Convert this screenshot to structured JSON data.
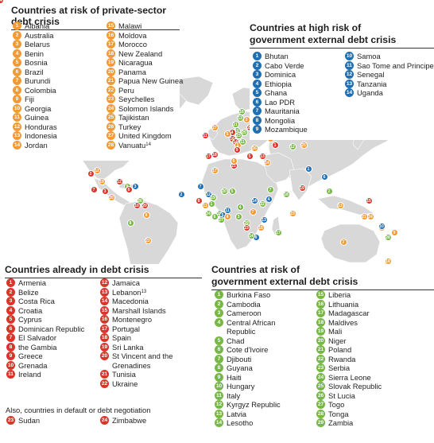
{
  "colors": {
    "private": "#f39a35",
    "external": "#1f6fb5",
    "crisis": "#d9362b",
    "external_risk": "#77b845",
    "land": "#d8d8d8",
    "ocean": "#ffffff"
  },
  "private_sector": {
    "title": "Countries at risk of private-sector debt crisis",
    "col1": [
      {
        "n": "1",
        "name": "Albania"
      },
      {
        "n": "2",
        "name": "Australia"
      },
      {
        "n": "3",
        "name": "Belarus"
      },
      {
        "n": "4",
        "name": "Benin"
      },
      {
        "n": "5",
        "name": "Bosnia"
      },
      {
        "n": "6",
        "name": "Brazil"
      },
      {
        "n": "7",
        "name": "Burundi"
      },
      {
        "n": "8",
        "name": "Colombia"
      },
      {
        "n": "9",
        "name": "Fiji"
      },
      {
        "n": "10",
        "name": "Georgia"
      },
      {
        "n": "11",
        "name": "Guinea"
      },
      {
        "n": "12",
        "name": "Honduras"
      },
      {
        "n": "13",
        "name": "Indonesia"
      },
      {
        "n": "14",
        "name": "Jordan"
      }
    ],
    "col2": [
      {
        "n": "15",
        "name": "Malawi"
      },
      {
        "n": "16",
        "name": "Moldova"
      },
      {
        "n": "17",
        "name": "Morocco"
      },
      {
        "n": "18",
        "name": "New Zealand"
      },
      {
        "n": "19",
        "name": "Nicaragua"
      },
      {
        "n": "20",
        "name": "Panama"
      },
      {
        "n": "21",
        "name": "Papua New Guinea"
      },
      {
        "n": "22",
        "name": "Peru"
      },
      {
        "n": "23",
        "name": "Seychelles"
      },
      {
        "n": "24",
        "name": "Solomon Islands"
      },
      {
        "n": "25",
        "name": "Tajikistan"
      },
      {
        "n": "26",
        "name": "Turkey"
      },
      {
        "n": "27",
        "name": "United Kingdom"
      },
      {
        "n": "28",
        "name": "Vanuatu",
        "sup": "14"
      }
    ]
  },
  "external_high": {
    "title_line1": "Countries at high risk of",
    "title_line2": "government external debt crisis",
    "col1": [
      {
        "n": "1",
        "name": "Bhutan"
      },
      {
        "n": "2",
        "name": "Cabo Verde"
      },
      {
        "n": "3",
        "name": "Dominica"
      },
      {
        "n": "4",
        "name": "Ethiopia"
      },
      {
        "n": "5",
        "name": "Ghana"
      },
      {
        "n": "6",
        "name": "Lao PDR"
      },
      {
        "n": "7",
        "name": "Mauritania"
      },
      {
        "n": "8",
        "name": "Mongolia"
      },
      {
        "n": "9",
        "name": "Mozambique"
      }
    ],
    "col2": [
      {
        "n": "10",
        "name": "Samoa"
      },
      {
        "n": "11",
        "name": "Sao Tome and Principe"
      },
      {
        "n": "12",
        "name": "Senegal"
      },
      {
        "n": "13",
        "name": "Tanzania"
      },
      {
        "n": "14",
        "name": "Uganda"
      }
    ]
  },
  "in_crisis": {
    "title": "Countries already in debt crisis",
    "col1": [
      {
        "n": "1",
        "name": "Armenia"
      },
      {
        "n": "2",
        "name": "Belize"
      },
      {
        "n": "3",
        "name": "Costa Rica"
      },
      {
        "n": "4",
        "name": "Croatia"
      },
      {
        "n": "5",
        "name": "Cyprus"
      },
      {
        "n": "6",
        "name": "Dominican Republic"
      },
      {
        "n": "7",
        "name": "El Salvador"
      },
      {
        "n": "8",
        "name": "the Gambia"
      },
      {
        "n": "9",
        "name": "Greece"
      },
      {
        "n": "10",
        "name": "Grenada"
      },
      {
        "n": "11",
        "name": "Ireland"
      }
    ],
    "col2": [
      {
        "n": "12",
        "name": "Jamaica"
      },
      {
        "n": "13",
        "name": "Lebanon",
        "sup": "13"
      },
      {
        "n": "14",
        "name": "Macedonia"
      },
      {
        "n": "15",
        "name": "Marshall Islands"
      },
      {
        "n": "16",
        "name": "Montenegro"
      },
      {
        "n": "17",
        "name": "Portugal"
      },
      {
        "n": "18",
        "name": "Spain"
      },
      {
        "n": "19",
        "name": "Sri Lanka"
      },
      {
        "n": "20",
        "name": "St Vincent and the",
        "name2": "Grenadines"
      },
      {
        "n": "21",
        "name": "Tunisia"
      },
      {
        "n": "22",
        "name": "Ukraine"
      }
    ],
    "note": "Also, countries in default or debt negotiation",
    "default": [
      {
        "n": "23",
        "name": "Sudan"
      },
      {
        "n": "24",
        "name": "Zimbabwe"
      }
    ]
  },
  "external_risk": {
    "title_line1": "Countries at risk of",
    "title_line2": "government external debt crisis",
    "col1": [
      {
        "n": "1",
        "name": "Burkina Faso"
      },
      {
        "n": "2",
        "name": "Cambodia"
      },
      {
        "n": "3",
        "name": "Cameroon"
      },
      {
        "n": "4",
        "name": "Central African",
        "name2": "Republic"
      },
      {
        "n": "5",
        "name": "Chad"
      },
      {
        "n": "6",
        "name": "Cote d'Ivoire"
      },
      {
        "n": "7",
        "name": "Djibouti"
      },
      {
        "n": "8",
        "name": "Guyana"
      },
      {
        "n": "9",
        "name": "Haiti"
      },
      {
        "n": "10",
        "name": "Hungary"
      },
      {
        "n": "11",
        "name": "Italy"
      },
      {
        "n": "12",
        "name": "Kyrgyz Republic"
      },
      {
        "n": "13",
        "name": "Latvia"
      },
      {
        "n": "14",
        "name": "Lesotho"
      }
    ],
    "col2": [
      {
        "n": "15",
        "name": "Liberia"
      },
      {
        "n": "16",
        "name": "Lithuania"
      },
      {
        "n": "17",
        "name": "Madagascar"
      },
      {
        "n": "18",
        "name": "Maldives"
      },
      {
        "n": "19",
        "name": "Mali"
      },
      {
        "n": "20",
        "name": "Niger"
      },
      {
        "n": "21",
        "name": "Poland"
      },
      {
        "n": "22",
        "name": "Rwanda"
      },
      {
        "n": "23",
        "name": "Serbia"
      },
      {
        "n": "24",
        "name": "Sierra Leone"
      },
      {
        "n": "25",
        "name": "Slovak Republic"
      },
      {
        "n": "26",
        "name": "St Lucia"
      },
      {
        "n": "27",
        "name": "Togo"
      },
      {
        "n": "28",
        "name": "Tonga"
      },
      {
        "n": "29",
        "name": "Zambia"
      }
    ]
  },
  "map_markers": [
    {
      "cat": "private",
      "n": "27"
    },
    {
      "cat": "crisis",
      "n": "11"
    },
    {
      "cat": "private",
      "n": "3"
    },
    {
      "cat": "external_risk",
      "n": "16"
    },
    {
      "cat": "external_risk",
      "n": "13"
    },
    {
      "cat": "external_risk",
      "n": "21"
    },
    {
      "cat": "crisis",
      "n": "22"
    },
    {
      "cat": "private",
      "n": "16"
    },
    {
      "cat": "external_risk",
      "n": "10"
    },
    {
      "cat": "external_risk",
      "n": "25"
    },
    {
      "cat": "crisis",
      "n": "4"
    },
    {
      "cat": "private",
      "n": "5"
    },
    {
      "cat": "external_risk",
      "n": "23"
    },
    {
      "cat": "crisis",
      "n": "16"
    },
    {
      "cat": "crisis",
      "n": "14"
    },
    {
      "cat": "private",
      "n": "1"
    },
    {
      "cat": "external_risk",
      "n": "11"
    },
    {
      "cat": "crisis",
      "n": "9"
    },
    {
      "cat": "private",
      "n": "26"
    },
    {
      "cat": "private",
      "n": "10"
    },
    {
      "cat": "crisis",
      "n": "1"
    },
    {
      "cat": "crisis",
      "n": "5"
    },
    {
      "cat": "crisis",
      "n": "13"
    },
    {
      "cat": "private",
      "n": "14"
    },
    {
      "cat": "crisis",
      "n": "17"
    },
    {
      "cat": "crisis",
      "n": "18"
    },
    {
      "cat": "private",
      "n": "17"
    },
    {
      "cat": "crisis",
      "n": "21"
    },
    {
      "cat": "private",
      "n": "25"
    },
    {
      "cat": "external_risk",
      "n": "12"
    },
    {
      "cat": "external",
      "n": "8"
    },
    {
      "cat": "external",
      "n": "1"
    },
    {
      "cat": "crisis",
      "n": "19"
    },
    {
      "cat": "external_risk",
      "n": "18"
    },
    {
      "cat": "external",
      "n": "6"
    },
    {
      "cat": "external_risk",
      "n": "2"
    },
    {
      "cat": "private",
      "n": "13"
    },
    {
      "cat": "private",
      "n": "21"
    },
    {
      "cat": "private",
      "n": "24"
    },
    {
      "cat": "private",
      "n": "28"
    },
    {
      "cat": "private",
      "n": "9"
    },
    {
      "cat": "external",
      "n": "10"
    },
    {
      "cat": "external_risk",
      "n": "28"
    },
    {
      "cat": "private",
      "n": "2"
    },
    {
      "cat": "private",
      "n": "18"
    },
    {
      "cat": "crisis",
      "n": "15"
    },
    {
      "cat": "external",
      "n": "7"
    },
    {
      "cat": "crisis",
      "n": "8"
    },
    {
      "cat": "external",
      "n": "12"
    },
    {
      "cat": "external_risk",
      "n": "19"
    },
    {
      "cat": "external_risk",
      "n": "20"
    },
    {
      "cat": "external_risk",
      "n": "5"
    },
    {
      "cat": "external_risk",
      "n": "1"
    },
    {
      "cat": "private",
      "n": "11"
    },
    {
      "cat": "external_risk",
      "n": "24"
    },
    {
      "cat": "external_risk",
      "n": "15"
    },
    {
      "cat": "external_risk",
      "n": "6"
    },
    {
      "cat": "external",
      "n": "5"
    },
    {
      "cat": "external_risk",
      "n": "27"
    },
    {
      "cat": "private",
      "n": "4"
    },
    {
      "cat": "external_risk",
      "n": "3"
    },
    {
      "cat": "external_risk",
      "n": "4"
    },
    {
      "cat": "external",
      "n": "11"
    },
    {
      "cat": "external_risk",
      "n": "7"
    },
    {
      "cat": "external",
      "n": "4"
    },
    {
      "cat": "external",
      "n": "14"
    },
    {
      "cat": "external_risk",
      "n": "22"
    },
    {
      "cat": "private",
      "n": "7"
    },
    {
      "cat": "external",
      "n": "13"
    },
    {
      "cat": "private",
      "n": "15"
    },
    {
      "cat": "external_risk",
      "n": "29"
    },
    {
      "cat": "external",
      "n": "9"
    },
    {
      "cat": "external_risk",
      "n": "17"
    },
    {
      "cat": "private",
      "n": "23"
    },
    {
      "cat": "external_risk",
      "n": "14"
    },
    {
      "cat": "external",
      "n": "2"
    },
    {
      "cat": "private",
      "n": "12"
    },
    {
      "cat": "private",
      "n": "19"
    },
    {
      "cat": "crisis",
      "n": "7"
    },
    {
      "cat": "crisis",
      "n": "3"
    },
    {
      "cat": "private",
      "n": "20"
    },
    {
      "cat": "crisis",
      "n": "2"
    },
    {
      "cat": "crisis",
      "n": "12"
    },
    {
      "cat": "external_risk",
      "n": "9"
    },
    {
      "cat": "crisis",
      "n": "6"
    },
    {
      "cat": "external",
      "n": "3"
    },
    {
      "cat": "external_risk",
      "n": "26"
    },
    {
      "cat": "crisis",
      "n": "20"
    },
    {
      "cat": "crisis",
      "n": "10"
    },
    {
      "cat": "private",
      "n": "8"
    },
    {
      "cat": "external_risk",
      "n": "8"
    },
    {
      "cat": "private",
      "n": "22"
    },
    {
      "cat": "private",
      "n": "6"
    },
    {
      "cat": "crisis",
      "n": "23"
    },
    {
      "cat": "crisis",
      "n": "24"
    }
  ]
}
